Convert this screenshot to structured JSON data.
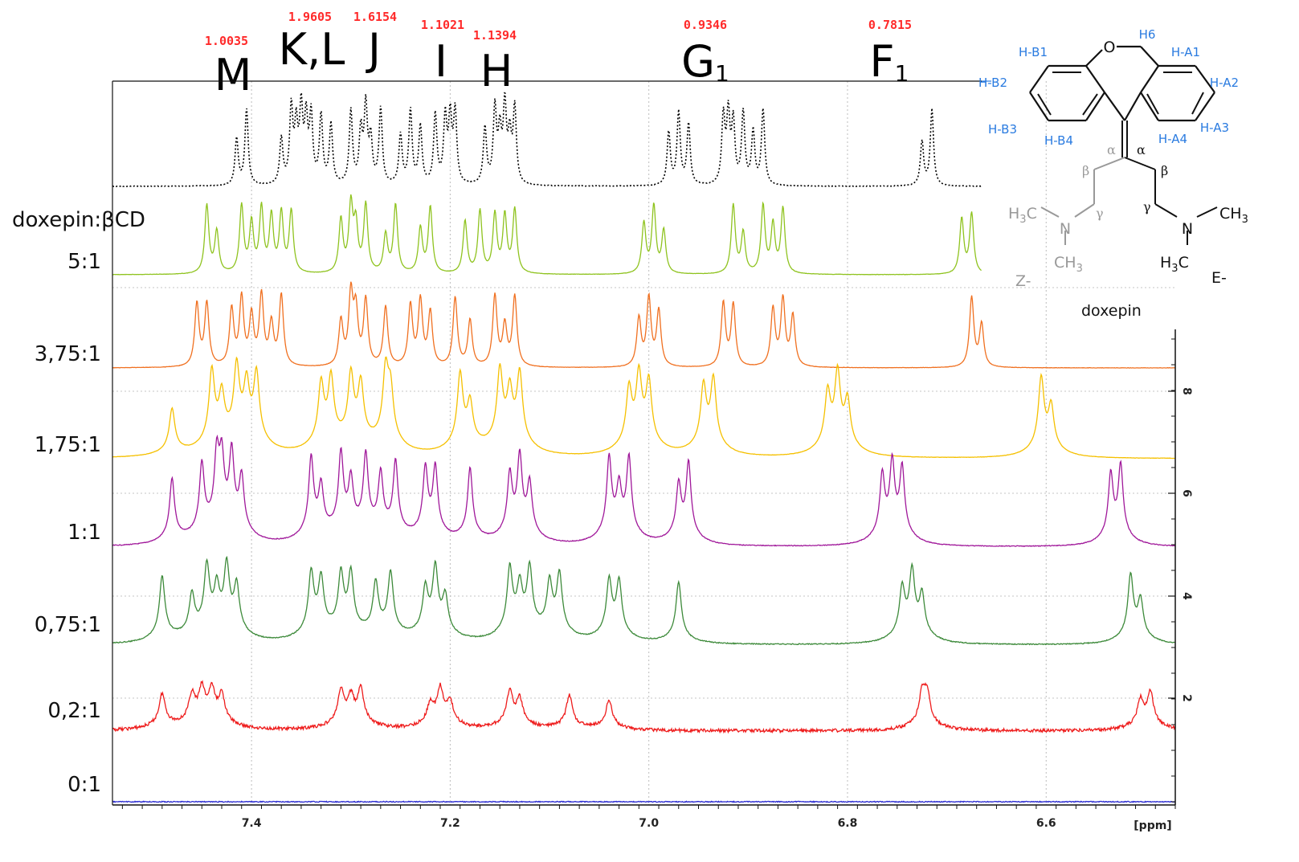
{
  "chart_data": {
    "type": "line",
    "xlabel": "[ppm]",
    "x_ticks": [
      "7.4",
      "7.2",
      "7.0",
      "6.8",
      "6.6"
    ],
    "y_ticks": [
      "2",
      "4",
      "6",
      "8"
    ],
    "xlim": [
      7.54,
      6.47
    ],
    "x_reversed": true,
    "grid": true,
    "series_header": "doxepin:βCD",
    "reference_trace": {
      "name": "doxepin",
      "style": "dotted",
      "color": "#000000"
    },
    "peaks": [
      {
        "label": "M",
        "sub": "",
        "integral": "1.0035",
        "ppm": 7.41
      },
      {
        "label": "K,L",
        "sub": "",
        "integral": "1.9605",
        "ppm": 7.355
      },
      {
        "label": "J",
        "sub": "",
        "integral": "1.6154",
        "ppm": 7.285
      },
      {
        "label": "I",
        "sub": "",
        "integral": "1.1021",
        "ppm": 7.205
      },
      {
        "label": "H",
        "sub": "",
        "integral": "1.1394",
        "ppm": 7.145
      },
      {
        "label": "G",
        "sub": "1",
        "integral": "0.9346",
        "ppm": 6.915
      },
      {
        "label": "F",
        "sub": "1",
        "integral": "0.7815",
        "ppm": 6.715
      }
    ],
    "series": [
      {
        "name": "5:1",
        "color": "#8fc31f",
        "peaks_ppm": [
          7.445,
          7.435,
          7.41,
          7.4,
          7.39,
          7.38,
          7.37,
          7.36,
          7.31,
          7.3,
          7.295,
          7.285,
          7.265,
          7.255,
          7.23,
          7.22,
          7.185,
          7.17,
          7.155,
          7.145,
          7.135,
          7.005,
          6.995,
          6.985,
          6.915,
          6.905,
          6.885,
          6.875,
          6.865,
          6.685,
          6.675
        ]
      },
      {
        "name": "3,75:1",
        "color": "#f07020",
        "peaks_ppm": [
          7.455,
          7.445,
          7.42,
          7.41,
          7.4,
          7.39,
          7.38,
          7.37,
          7.31,
          7.3,
          7.295,
          7.285,
          7.265,
          7.24,
          7.23,
          7.22,
          7.195,
          7.18,
          7.155,
          7.145,
          7.135,
          7.01,
          7.0,
          6.99,
          6.925,
          6.915,
          6.875,
          6.865,
          6.855,
          6.675,
          6.665
        ]
      },
      {
        "name": "1,75:1",
        "color": "#f5c000",
        "peaks_ppm": [
          7.48,
          7.44,
          7.43,
          7.415,
          7.405,
          7.395,
          7.33,
          7.32,
          7.3,
          7.29,
          7.265,
          7.26,
          7.19,
          7.18,
          7.15,
          7.14,
          7.13,
          7.02,
          7.01,
          7.0,
          6.945,
          6.935,
          6.82,
          6.81,
          6.8,
          6.605,
          6.595
        ]
      },
      {
        "name": "1:1",
        "color": "#a0189a",
        "peaks_ppm": [
          7.48,
          7.45,
          7.435,
          7.43,
          7.42,
          7.41,
          7.34,
          7.33,
          7.31,
          7.3,
          7.285,
          7.27,
          7.255,
          7.225,
          7.215,
          7.18,
          7.14,
          7.13,
          7.12,
          7.04,
          7.03,
          7.02,
          6.97,
          6.96,
          6.765,
          6.755,
          6.745,
          6.535,
          6.525
        ]
      },
      {
        "name": "0,75:1",
        "color": "#3d8a3a",
        "peaks_ppm": [
          7.49,
          7.46,
          7.445,
          7.435,
          7.425,
          7.415,
          7.34,
          7.33,
          7.31,
          7.3,
          7.275,
          7.26,
          7.225,
          7.215,
          7.205,
          7.14,
          7.13,
          7.12,
          7.1,
          7.09,
          7.04,
          7.03,
          6.97,
          6.745,
          6.735,
          6.725,
          6.515,
          6.505
        ]
      },
      {
        "name": "0,2:1",
        "color": "#ee1c1c",
        "peaks_ppm": [
          7.49,
          7.46,
          7.45,
          7.44,
          7.43,
          7.31,
          7.3,
          7.29,
          7.22,
          7.21,
          7.2,
          7.14,
          7.13,
          7.08,
          7.04,
          6.725,
          6.72,
          6.505,
          6.495
        ]
      },
      {
        "name": "0:1",
        "color": "#2a2ad0",
        "peaks_ppm": []
      }
    ]
  },
  "structure": {
    "name": "doxepin",
    "z_label": "Z-",
    "e_label": "E-",
    "proton_labels": [
      "H6",
      "H-B1",
      "H-A1",
      "H-B2",
      "H-A2",
      "H-B3",
      "H-A3",
      "H-B4",
      "H-A4"
    ],
    "atom_o": "O",
    "alpha": "α",
    "beta": "β",
    "gamma": "γ",
    "n": "N",
    "methyl": "CH",
    "methyl_sub": "3",
    "h3c": "H",
    "h3c_sub": "3",
    "h3c_c": "C"
  }
}
